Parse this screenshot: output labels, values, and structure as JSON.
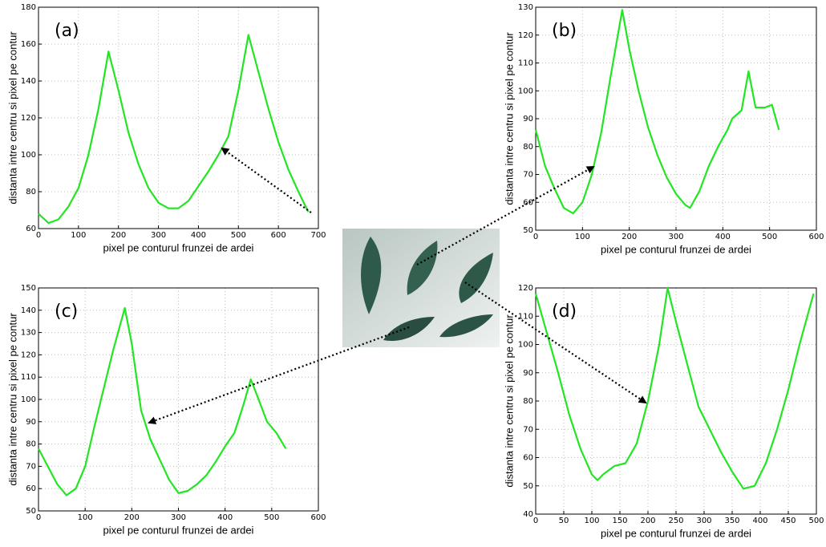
{
  "chart_data": [
    {
      "type": "line",
      "annotation": "(a)",
      "ylabel": "distanta intre centru si pixel pe contur",
      "xlabel": "pixel pe conturul frunzei de ardei",
      "x": [
        0,
        25,
        50,
        75,
        100,
        125,
        150,
        175,
        200,
        225,
        250,
        275,
        300,
        325,
        350,
        375,
        400,
        425,
        450,
        475,
        500,
        525,
        550,
        575,
        600,
        625,
        650,
        675
      ],
      "values": [
        68,
        63,
        65,
        72,
        82,
        100,
        125,
        156,
        135,
        112,
        95,
        82,
        74,
        71,
        71,
        75,
        83,
        91,
        100,
        110,
        135,
        165,
        145,
        125,
        107,
        92,
        80,
        69
      ],
      "color": "#22e622",
      "xlim": [
        0,
        700
      ],
      "xticks": [
        0,
        100,
        200,
        300,
        400,
        500,
        600,
        700
      ],
      "ylim": [
        60,
        180
      ],
      "yticks": [
        60,
        80,
        100,
        120,
        140,
        160,
        180
      ],
      "grid": true
    },
    {
      "type": "line",
      "annotation": "(b)",
      "ylabel": "distanta intre centru si pixel pe contur",
      "xlabel": "pixel pe conturul frunzei de ardei",
      "x": [
        0,
        20,
        40,
        60,
        80,
        100,
        120,
        140,
        160,
        185,
        200,
        220,
        240,
        260,
        280,
        300,
        320,
        330,
        350,
        370,
        390,
        400,
        410,
        420,
        440,
        455,
        470,
        490,
        505,
        520
      ],
      "values": [
        86,
        73,
        65,
        58,
        56,
        60,
        70,
        85,
        105,
        129,
        115,
        100,
        87,
        77,
        69,
        63,
        59,
        58,
        64,
        73,
        80,
        83,
        86,
        90,
        93,
        107,
        94,
        94,
        95,
        86
      ],
      "color": "#22e622",
      "xlim": [
        0,
        600
      ],
      "xticks": [
        0,
        100,
        200,
        300,
        400,
        500,
        600
      ],
      "ylim": [
        50,
        130
      ],
      "yticks": [
        50,
        60,
        70,
        80,
        90,
        100,
        110,
        120,
        130
      ],
      "grid": true
    },
    {
      "type": "line",
      "annotation": "(c)",
      "ylabel": "distanta intre centru si pixel pe contur",
      "xlabel": "pixel pe conturul frunzei de ardei",
      "x": [
        0,
        20,
        40,
        60,
        80,
        100,
        120,
        140,
        160,
        185,
        200,
        220,
        240,
        260,
        280,
        300,
        320,
        340,
        360,
        380,
        400,
        420,
        440,
        455,
        470,
        490,
        510,
        530
      ],
      "values": [
        78,
        70,
        62,
        57,
        60,
        70,
        88,
        105,
        122,
        141,
        125,
        95,
        82,
        73,
        64,
        58,
        59,
        62,
        66,
        72,
        79,
        85,
        98,
        109,
        101,
        90,
        85,
        78
      ],
      "color": "#22e622",
      "xlim": [
        0,
        600
      ],
      "xticks": [
        0,
        100,
        200,
        300,
        400,
        500,
        600
      ],
      "ylim": [
        50,
        150
      ],
      "yticks": [
        50,
        60,
        70,
        80,
        90,
        100,
        110,
        120,
        130,
        140,
        150
      ],
      "grid": true
    },
    {
      "type": "line",
      "annotation": "(d)",
      "ylabel": "distanta intre centru si pixel pe contur",
      "xlabel": "pixel pe conturul frunzei de ardei",
      "x": [
        0,
        20,
        40,
        60,
        80,
        100,
        110,
        120,
        140,
        160,
        180,
        200,
        220,
        235,
        250,
        270,
        290,
        310,
        330,
        350,
        370,
        390,
        410,
        430,
        450,
        470,
        495
      ],
      "values": [
        118,
        104,
        90,
        75,
        63,
        54,
        52,
        54,
        57,
        58,
        65,
        80,
        100,
        120,
        108,
        93,
        78,
        70,
        62,
        55,
        49,
        50,
        58,
        70,
        84,
        100,
        118
      ],
      "color": "#22e622",
      "xlim": [
        0,
        500
      ],
      "xticks": [
        0,
        50,
        100,
        150,
        200,
        250,
        300,
        350,
        400,
        450,
        500
      ],
      "ylim": [
        40,
        120
      ],
      "yticks": [
        40,
        50,
        60,
        70,
        80,
        90,
        100,
        110,
        120
      ],
      "grid": true
    }
  ]
}
